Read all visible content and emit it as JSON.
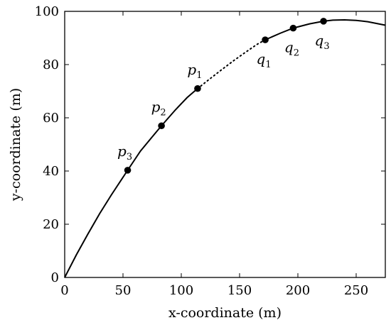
{
  "chart_data": {
    "type": "line",
    "xlabel": "x-coordinate (m)",
    "ylabel": "y-coordinate (m)",
    "xlim": [
      0,
      275
    ],
    "ylim": [
      0,
      100
    ],
    "xticks": [
      0,
      50,
      100,
      150,
      200,
      250
    ],
    "yticks": [
      0,
      20,
      40,
      60,
      80,
      100
    ],
    "grid": false,
    "curve": {
      "solid_segments": [
        [
          [
            0,
            0
          ],
          [
            10,
            8.5
          ],
          [
            20,
            16.4
          ],
          [
            30,
            24.0
          ],
          [
            40,
            31.0
          ],
          [
            54,
            40.3
          ],
          [
            65,
            47.5
          ],
          [
            75,
            52.8
          ],
          [
            83,
            57.0
          ],
          [
            95,
            63.0
          ],
          [
            105,
            67.6
          ],
          [
            114,
            71.0
          ]
        ],
        [
          [
            172,
            89.3
          ],
          [
            185,
            91.8
          ],
          [
            196,
            93.7
          ],
          [
            210,
            95.3
          ],
          [
            222,
            96.3
          ],
          [
            230,
            96.7
          ],
          [
            240,
            96.8
          ],
          [
            250,
            96.6
          ],
          [
            260,
            96.1
          ],
          [
            275,
            94.8
          ]
        ]
      ],
      "dotted_segment": [
        [
          114,
          71.0
        ],
        [
          125,
          74.8
        ],
        [
          135,
          78.2
        ],
        [
          145,
          81.5
        ],
        [
          155,
          84.6
        ],
        [
          165,
          87.6
        ],
        [
          172,
          89.3
        ]
      ]
    },
    "points": [
      {
        "name": "p",
        "sub": "3",
        "x": 54,
        "y": 40.3,
        "label_pos": "above"
      },
      {
        "name": "p",
        "sub": "2",
        "x": 83,
        "y": 57.0,
        "label_pos": "above"
      },
      {
        "name": "p",
        "sub": "1",
        "x": 114,
        "y": 71.0,
        "label_pos": "above"
      },
      {
        "name": "q",
        "sub": "1",
        "x": 172,
        "y": 89.3,
        "label_pos": "below"
      },
      {
        "name": "q",
        "sub": "2",
        "x": 196,
        "y": 93.7,
        "label_pos": "below"
      },
      {
        "name": "q",
        "sub": "3",
        "x": 222,
        "y": 96.3,
        "label_pos": "below"
      }
    ]
  }
}
